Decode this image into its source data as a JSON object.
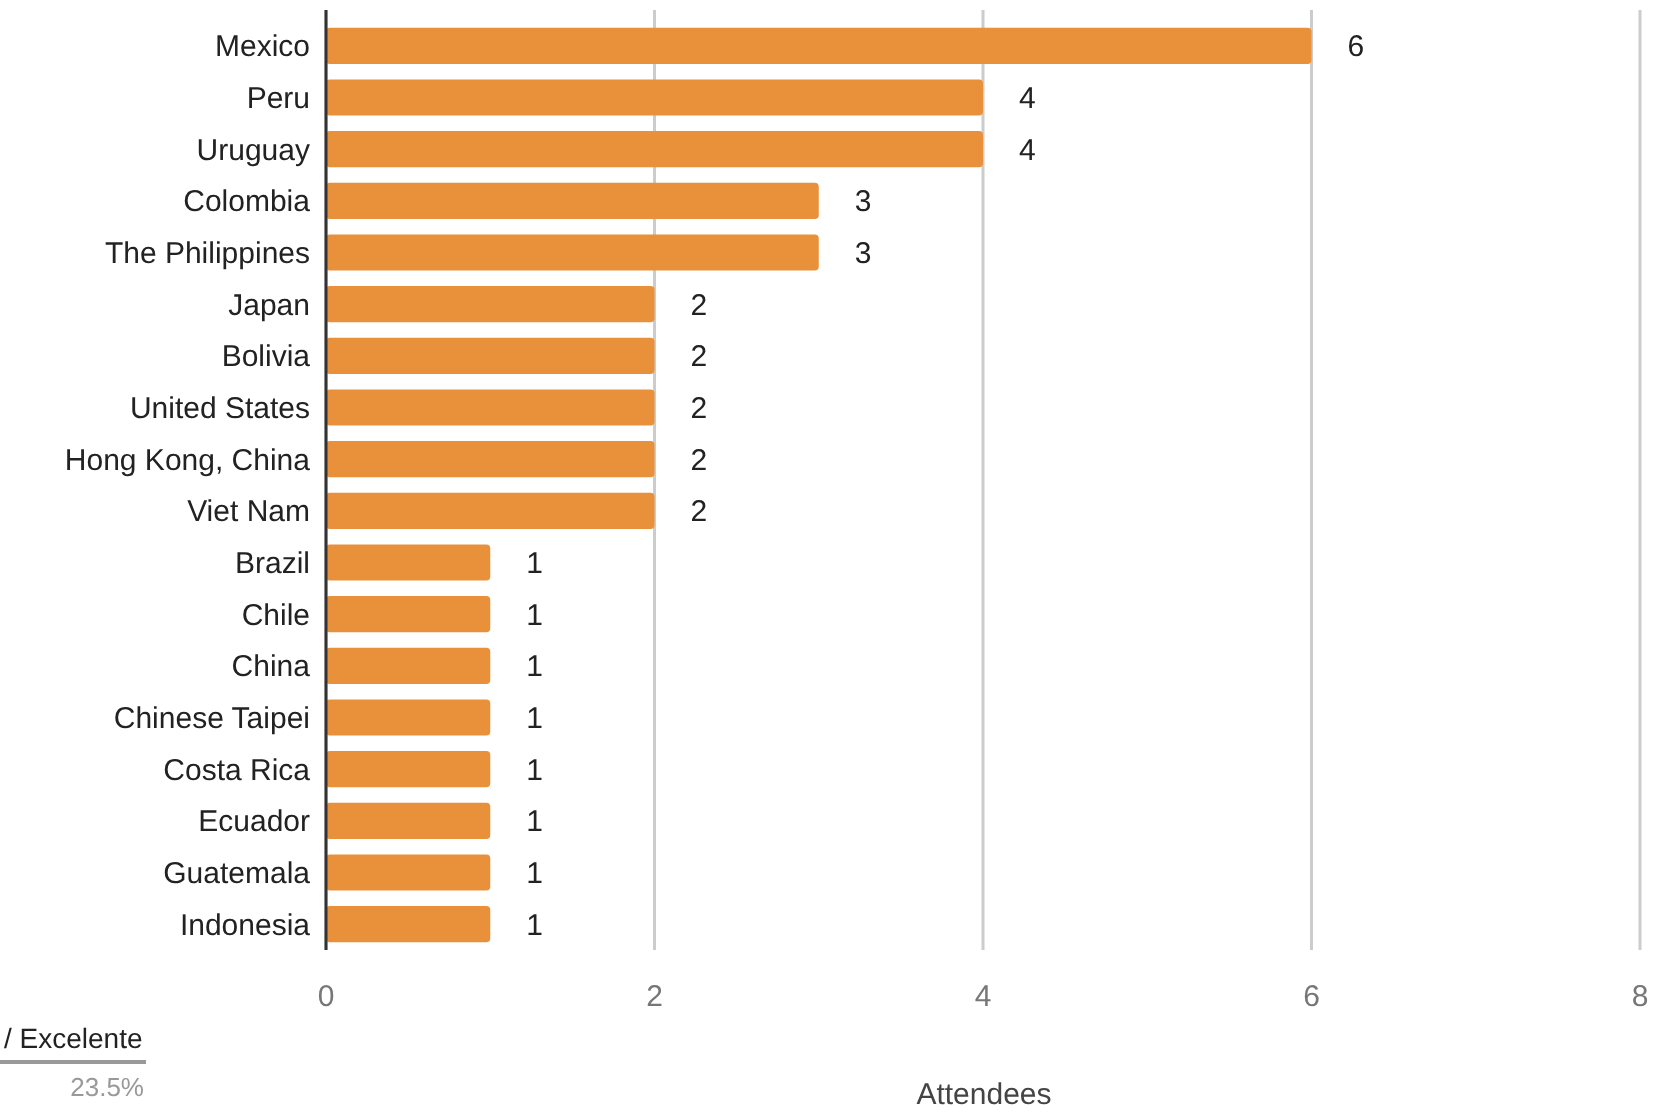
{
  "chart_data": {
    "type": "bar",
    "orientation": "horizontal",
    "xlabel": "Attendees",
    "categories": [
      "Mexico",
      "Peru",
      "Uruguay",
      "Colombia",
      "The Philippines",
      "Japan",
      "Bolivia",
      "United States",
      "Hong Kong, China",
      "Viet Nam",
      "Brazil",
      "Chile",
      "China",
      "Chinese Taipei",
      "Costa Rica",
      "Ecuador",
      "Guatemala",
      "Indonesia"
    ],
    "values": [
      6,
      4,
      4,
      3,
      3,
      2,
      2,
      2,
      2,
      2,
      1,
      1,
      1,
      1,
      1,
      1,
      1,
      1
    ],
    "color": "#e8913a",
    "xlim": [
      0,
      8
    ],
    "xticks": [
      0,
      2,
      4,
      6,
      8
    ],
    "grid": "x",
    "data_labels": true,
    "annotations": [
      "/ Excelente",
      "23.5%"
    ]
  }
}
